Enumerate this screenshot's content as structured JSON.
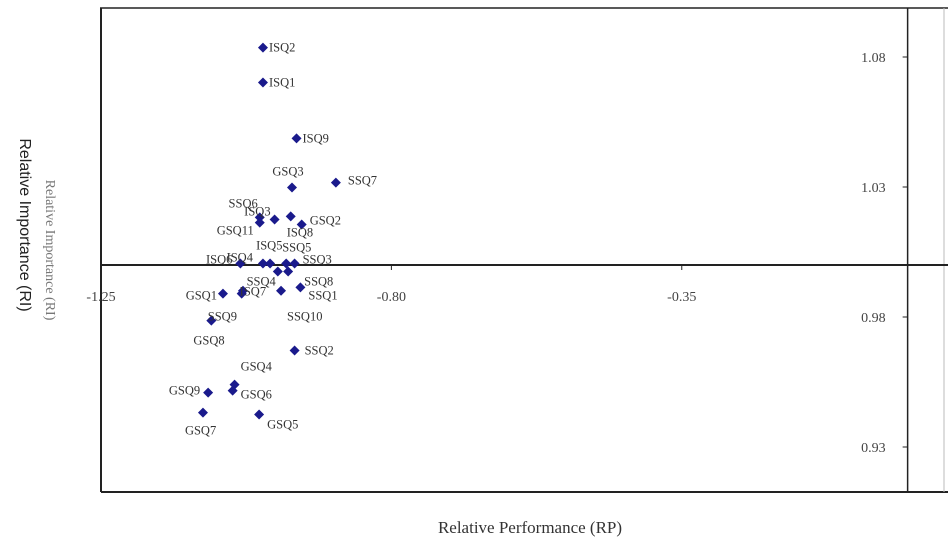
{
  "chart_data": {
    "type": "scatter",
    "xlabel": "Relative Performance (RP)",
    "ylabel": "Relative Importance (RI)",
    "xlim": [
      -1.25,
      0.1
    ],
    "ylim": [
      0.925,
      1.085
    ],
    "x_ticks": [
      {
        "value": -1.25,
        "label": "-1.25"
      },
      {
        "value": -0.8,
        "label": "-0.80"
      },
      {
        "value": -0.35,
        "label": "-0.35"
      }
    ],
    "y_ticks": [
      {
        "value": 1.08,
        "label": "1.08"
      },
      {
        "value": 1.03,
        "label": "1.03"
      },
      {
        "value": 0.98,
        "label": "0.98"
      },
      {
        "value": 0.93,
        "label": "0.93"
      }
    ],
    "x_axis_crosses_y": 1.0,
    "y_axis_crosses_x": 0.0,
    "grid": false,
    "marker_color": "#1a1a8c",
    "points": [
      {
        "label": "ISQ2",
        "x": -0.999,
        "y": 1.0836
      },
      {
        "label": "ISQ1",
        "x": -0.999,
        "y": 1.0702
      },
      {
        "label": "ISQ9",
        "x": -0.947,
        "y": 1.0487
      },
      {
        "label": "SSQ7",
        "x": -0.886,
        "y": 1.0317
      },
      {
        "label": "GSQ3",
        "x": -0.954,
        "y": 1.0298
      },
      {
        "label": "SSQ6",
        "x": -1.004,
        "y": 1.0183
      },
      {
        "label": "ISQ8",
        "x": -0.956,
        "y": 1.0187
      },
      {
        "label": "ISQ3",
        "x": -0.981,
        "y": 1.0175
      },
      {
        "label": "GSQ2",
        "x": -0.939,
        "y": 1.0156
      },
      {
        "label": "GSQ11",
        "x": -1.004,
        "y": 1.0163
      },
      {
        "label": "ISQ5",
        "x": -0.988,
        "y": 1.0006
      },
      {
        "label": "SSQ5",
        "x": -0.963,
        "y": 1.0006
      },
      {
        "label": "ISQ6",
        "x": -1.034,
        "y": 1.0006
      },
      {
        "label": "ISQ4",
        "x": -0.999,
        "y": 1.0006
      },
      {
        "label": "SSQ3",
        "x": -0.95,
        "y": 1.0006
      },
      {
        "label": "SSQ4",
        "x": -0.976,
        "y": 0.9975
      },
      {
        "label": "SSQ8",
        "x": -0.96,
        "y": 0.9975
      },
      {
        "label": "ISQ7",
        "x": -1.032,
        "y": 0.989
      },
      {
        "label": "GSQ1",
        "x": -1.061,
        "y": 0.989
      },
      {
        "label": "SSQ1",
        "x": -0.941,
        "y": 0.9914
      },
      {
        "label": "SSQ9",
        "x": -1.03,
        "y": 0.9901
      },
      {
        "label": "SSQ10",
        "x": -0.971,
        "y": 0.9901
      },
      {
        "label": "GSQ8",
        "x": -1.079,
        "y": 0.9786
      },
      {
        "label": "SSQ2",
        "x": -0.95,
        "y": 0.9671
      },
      {
        "label": "GSQ4",
        "x": -1.043,
        "y": 0.954
      },
      {
        "label": "GSQ6",
        "x": -1.046,
        "y": 0.9517
      },
      {
        "label": "GSQ9",
        "x": -1.084,
        "y": 0.9509
      },
      {
        "label": "GSQ7",
        "x": -1.092,
        "y": 0.9432
      },
      {
        "label": "GSQ5",
        "x": -1.005,
        "y": 0.9425
      }
    ]
  }
}
